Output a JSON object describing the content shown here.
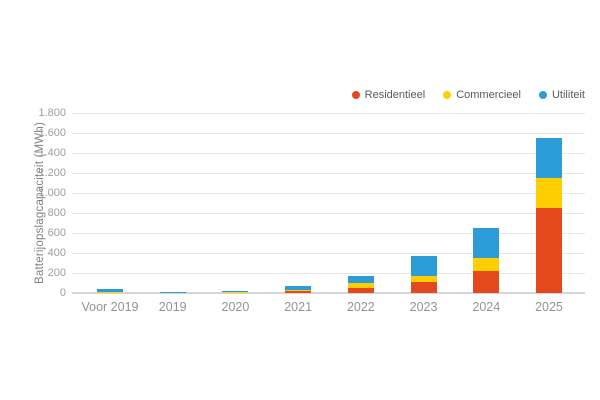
{
  "chart_data": {
    "type": "bar",
    "stacked": true,
    "title": "",
    "xlabel": "",
    "ylabel": "Batterijopslagcapaciteit (MWh)",
    "ylim": [
      0,
      1800
    ],
    "ytick_step": 200,
    "ytick_labels": [
      "0",
      "200",
      "400",
      "600",
      "800",
      "1.000",
      "1.200",
      "1.400",
      "1.600",
      "1.800"
    ],
    "categories": [
      "Voor 2019",
      "2019",
      "2020",
      "2021",
      "2022",
      "2023",
      "2024",
      "2025"
    ],
    "series": [
      {
        "name": "Residentieel",
        "color": "#e3491d",
        "values": [
          0,
          0,
          0,
          20,
          50,
          110,
          220,
          850
        ]
      },
      {
        "name": "Commercieel",
        "color": "#ffce00",
        "values": [
          10,
          0,
          10,
          10,
          50,
          60,
          130,
          300
        ]
      },
      {
        "name": "Utiliteit",
        "color": "#2b9cd8",
        "values": [
          30,
          15,
          10,
          40,
          70,
          200,
          300,
          400
        ]
      }
    ],
    "legend_position": "top-right",
    "grid": true,
    "background": "#ffffff"
  }
}
